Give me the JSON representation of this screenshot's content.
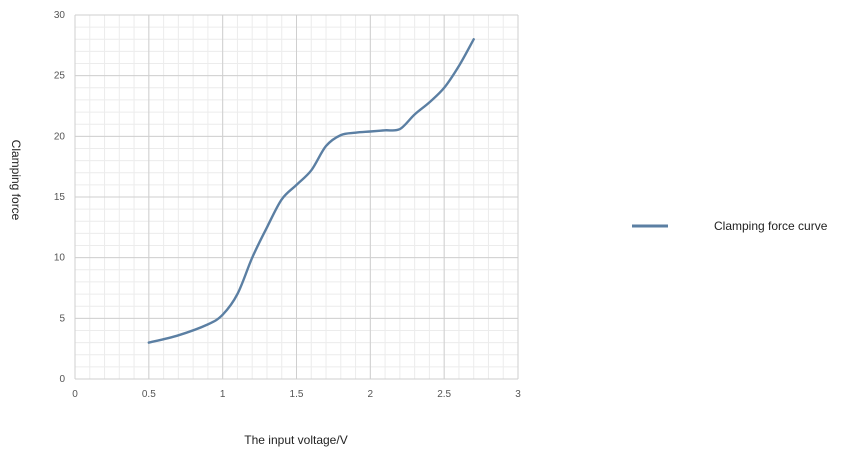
{
  "chart_data": {
    "type": "line",
    "xlabel": "The input voltage/V",
    "ylabel": "Clamping force",
    "xlim": [
      0,
      3
    ],
    "ylim": [
      0,
      30
    ],
    "x_ticks": [
      "0",
      "0.5",
      "1",
      "1.5",
      "2",
      "2.5",
      "3"
    ],
    "y_ticks": [
      "0",
      "5",
      "10",
      "15",
      "20",
      "25",
      "30"
    ],
    "grid": true,
    "legend_position": "right",
    "series": [
      {
        "name": "Clamping force curve",
        "color": "#5b7fa3",
        "x": [
          0.5,
          0.7,
          0.9,
          1.0,
          1.1,
          1.2,
          1.3,
          1.4,
          1.5,
          1.6,
          1.7,
          1.8,
          1.9,
          2.0,
          2.1,
          2.2,
          2.3,
          2.4,
          2.5,
          2.6,
          2.7
        ],
        "y": [
          3.0,
          3.6,
          4.5,
          5.3,
          7.0,
          10.0,
          12.5,
          14.8,
          16.0,
          17.2,
          19.2,
          20.1,
          20.3,
          20.4,
          20.5,
          20.6,
          21.8,
          22.8,
          24.0,
          25.8,
          28.0
        ]
      }
    ]
  }
}
